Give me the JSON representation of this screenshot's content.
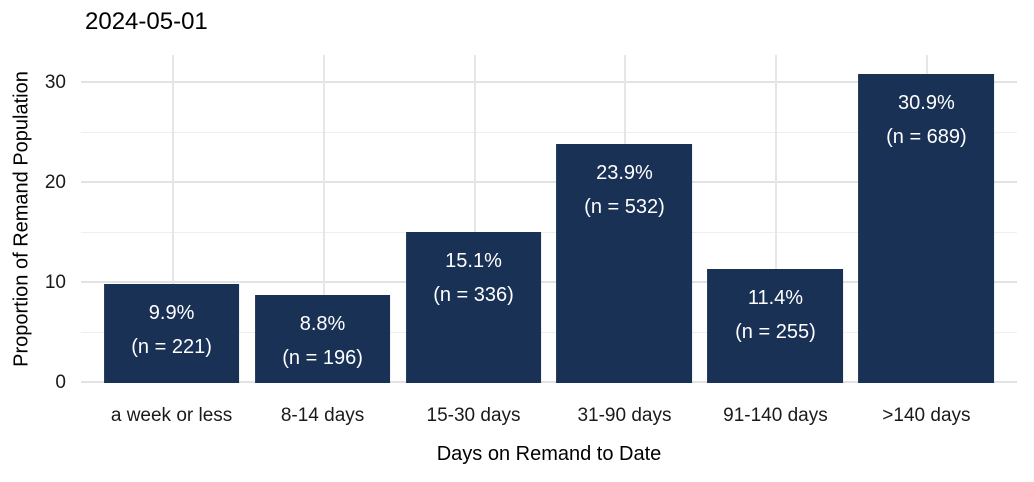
{
  "chart_data": {
    "type": "bar",
    "title": "2024-05-01",
    "xlabel": "Days on Remand to Date",
    "ylabel": "Proportion of Remand Population",
    "categories": [
      "a week or less",
      "8-14 days",
      "15-30 days",
      "31-90 days",
      "91-140 days",
      ">140 days"
    ],
    "values": [
      9.9,
      8.8,
      15.1,
      23.9,
      11.4,
      30.9
    ],
    "counts": [
      221,
      196,
      336,
      532,
      255,
      689
    ],
    "bar_percent_labels": [
      "9.9%",
      "8.8%",
      "15.1%",
      "23.9%",
      "11.4%",
      "30.9%"
    ],
    "bar_count_labels": [
      "(n = 221)",
      "(n = 196)",
      "(n = 336)",
      "(n = 532)",
      "(n = 255)",
      "(n = 689)"
    ],
    "yticks": [
      0,
      10,
      20,
      30
    ],
    "yticks_minor": [
      5,
      15,
      25
    ],
    "ylim": [
      0,
      32.8
    ],
    "grid": "on",
    "legend": "none",
    "bar_color": "#1a3156",
    "bar_label_color": "#ffffff",
    "grid_major_color": "#e2e2e2",
    "grid_minor_color": "#efefef",
    "background_color": "#ffffff",
    "text_color": "#000000"
  }
}
